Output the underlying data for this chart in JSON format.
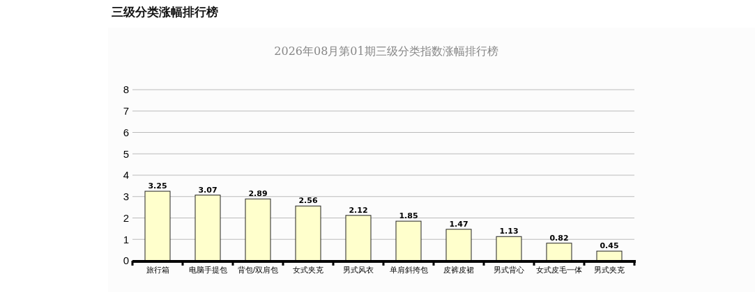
{
  "chart_data": {
    "type": "bar",
    "title": "三级分类涨幅排行榜",
    "subtitle": "2026年08月第01期三级分类指数涨幅排行榜",
    "categories": [
      "旅行箱",
      "电脑手提包",
      "背包/双肩包",
      "女式夹克",
      "男式风衣",
      "单肩斜挎包",
      "皮裤皮裙",
      "男式背心",
      "女式皮毛一体",
      "男式夹克"
    ],
    "values": [
      3.25,
      3.07,
      2.89,
      2.56,
      2.12,
      1.85,
      1.47,
      1.13,
      0.82,
      0.45
    ],
    "color": "#ffffcc",
    "ylim": [
      0,
      8
    ],
    "yticks": [
      0,
      1,
      2,
      3,
      4,
      5,
      6,
      7,
      8
    ],
    "grid": "y",
    "data_labels": true
  }
}
